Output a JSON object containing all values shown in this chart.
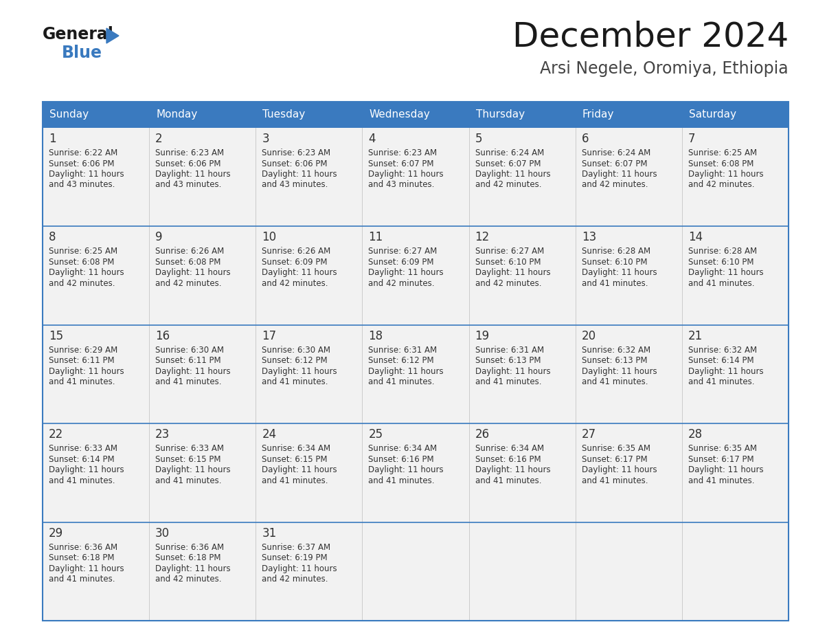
{
  "title": "December 2024",
  "subtitle": "Arsi Negele, Oromiya, Ethiopia",
  "header_color": "#3a7abf",
  "header_text_color": "#ffffff",
  "cell_bg_color": "#f2f2f2",
  "text_color": "#333333",
  "border_color": "#3a7abf",
  "row_sep_color": "#3a7abf",
  "col_sep_color": "#cccccc",
  "days_of_week": [
    "Sunday",
    "Monday",
    "Tuesday",
    "Wednesday",
    "Thursday",
    "Friday",
    "Saturday"
  ],
  "calendar_data": [
    [
      {
        "day": "1",
        "sunrise": "6:22 AM",
        "sunset": "6:06 PM",
        "daylight_h": "11 hours",
        "daylight_m": "and 43 minutes."
      },
      {
        "day": "2",
        "sunrise": "6:23 AM",
        "sunset": "6:06 PM",
        "daylight_h": "11 hours",
        "daylight_m": "and 43 minutes."
      },
      {
        "day": "3",
        "sunrise": "6:23 AM",
        "sunset": "6:06 PM",
        "daylight_h": "11 hours",
        "daylight_m": "and 43 minutes."
      },
      {
        "day": "4",
        "sunrise": "6:23 AM",
        "sunset": "6:07 PM",
        "daylight_h": "11 hours",
        "daylight_m": "and 43 minutes."
      },
      {
        "day": "5",
        "sunrise": "6:24 AM",
        "sunset": "6:07 PM",
        "daylight_h": "11 hours",
        "daylight_m": "and 42 minutes."
      },
      {
        "day": "6",
        "sunrise": "6:24 AM",
        "sunset": "6:07 PM",
        "daylight_h": "11 hours",
        "daylight_m": "and 42 minutes."
      },
      {
        "day": "7",
        "sunrise": "6:25 AM",
        "sunset": "6:08 PM",
        "daylight_h": "11 hours",
        "daylight_m": "and 42 minutes."
      }
    ],
    [
      {
        "day": "8",
        "sunrise": "6:25 AM",
        "sunset": "6:08 PM",
        "daylight_h": "11 hours",
        "daylight_m": "and 42 minutes."
      },
      {
        "day": "9",
        "sunrise": "6:26 AM",
        "sunset": "6:08 PM",
        "daylight_h": "11 hours",
        "daylight_m": "and 42 minutes."
      },
      {
        "day": "10",
        "sunrise": "6:26 AM",
        "sunset": "6:09 PM",
        "daylight_h": "11 hours",
        "daylight_m": "and 42 minutes."
      },
      {
        "day": "11",
        "sunrise": "6:27 AM",
        "sunset": "6:09 PM",
        "daylight_h": "11 hours",
        "daylight_m": "and 42 minutes."
      },
      {
        "day": "12",
        "sunrise": "6:27 AM",
        "sunset": "6:10 PM",
        "daylight_h": "11 hours",
        "daylight_m": "and 42 minutes."
      },
      {
        "day": "13",
        "sunrise": "6:28 AM",
        "sunset": "6:10 PM",
        "daylight_h": "11 hours",
        "daylight_m": "and 41 minutes."
      },
      {
        "day": "14",
        "sunrise": "6:28 AM",
        "sunset": "6:10 PM",
        "daylight_h": "11 hours",
        "daylight_m": "and 41 minutes."
      }
    ],
    [
      {
        "day": "15",
        "sunrise": "6:29 AM",
        "sunset": "6:11 PM",
        "daylight_h": "11 hours",
        "daylight_m": "and 41 minutes."
      },
      {
        "day": "16",
        "sunrise": "6:30 AM",
        "sunset": "6:11 PM",
        "daylight_h": "11 hours",
        "daylight_m": "and 41 minutes."
      },
      {
        "day": "17",
        "sunrise": "6:30 AM",
        "sunset": "6:12 PM",
        "daylight_h": "11 hours",
        "daylight_m": "and 41 minutes."
      },
      {
        "day": "18",
        "sunrise": "6:31 AM",
        "sunset": "6:12 PM",
        "daylight_h": "11 hours",
        "daylight_m": "and 41 minutes."
      },
      {
        "day": "19",
        "sunrise": "6:31 AM",
        "sunset": "6:13 PM",
        "daylight_h": "11 hours",
        "daylight_m": "and 41 minutes."
      },
      {
        "day": "20",
        "sunrise": "6:32 AM",
        "sunset": "6:13 PM",
        "daylight_h": "11 hours",
        "daylight_m": "and 41 minutes."
      },
      {
        "day": "21",
        "sunrise": "6:32 AM",
        "sunset": "6:14 PM",
        "daylight_h": "11 hours",
        "daylight_m": "and 41 minutes."
      }
    ],
    [
      {
        "day": "22",
        "sunrise": "6:33 AM",
        "sunset": "6:14 PM",
        "daylight_h": "11 hours",
        "daylight_m": "and 41 minutes."
      },
      {
        "day": "23",
        "sunrise": "6:33 AM",
        "sunset": "6:15 PM",
        "daylight_h": "11 hours",
        "daylight_m": "and 41 minutes."
      },
      {
        "day": "24",
        "sunrise": "6:34 AM",
        "sunset": "6:15 PM",
        "daylight_h": "11 hours",
        "daylight_m": "and 41 minutes."
      },
      {
        "day": "25",
        "sunrise": "6:34 AM",
        "sunset": "6:16 PM",
        "daylight_h": "11 hours",
        "daylight_m": "and 41 minutes."
      },
      {
        "day": "26",
        "sunrise": "6:34 AM",
        "sunset": "6:16 PM",
        "daylight_h": "11 hours",
        "daylight_m": "and 41 minutes."
      },
      {
        "day": "27",
        "sunrise": "6:35 AM",
        "sunset": "6:17 PM",
        "daylight_h": "11 hours",
        "daylight_m": "and 41 minutes."
      },
      {
        "day": "28",
        "sunrise": "6:35 AM",
        "sunset": "6:17 PM",
        "daylight_h": "11 hours",
        "daylight_m": "and 41 minutes."
      }
    ],
    [
      {
        "day": "29",
        "sunrise": "6:36 AM",
        "sunset": "6:18 PM",
        "daylight_h": "11 hours",
        "daylight_m": "and 41 minutes."
      },
      {
        "day": "30",
        "sunrise": "6:36 AM",
        "sunset": "6:18 PM",
        "daylight_h": "11 hours",
        "daylight_m": "and 42 minutes."
      },
      {
        "day": "31",
        "sunrise": "6:37 AM",
        "sunset": "6:19 PM",
        "daylight_h": "11 hours",
        "daylight_m": "and 42 minutes."
      },
      null,
      null,
      null,
      null
    ]
  ],
  "fig_width": 11.88,
  "fig_height": 9.18,
  "dpi": 100
}
